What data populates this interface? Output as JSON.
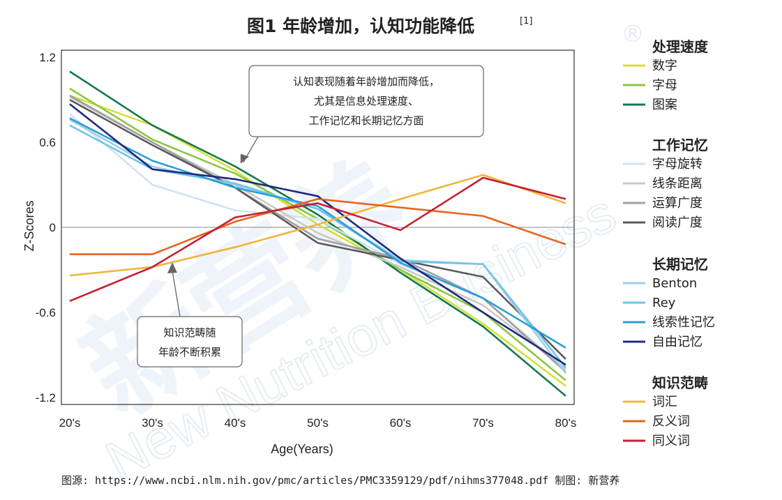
{
  "title": "图1  年龄增加，认知功能降低",
  "title_ref": "[1]",
  "watermark": {
    "cn": "新营养",
    "en": "New Nutrition Business",
    "reg": "®"
  },
  "chart_data": {
    "type": "line",
    "xlabel": "Age(Years)",
    "ylabel": "Z-Scores",
    "categories": [
      "20's",
      "30's",
      "40's",
      "50's",
      "60's",
      "70's",
      "80's"
    ],
    "ylim": [
      -1.25,
      1.25
    ],
    "yticks": [
      -1.2,
      -0.6,
      0,
      0.6,
      1.2
    ],
    "ytick_labels": [
      "-1.2",
      "-0.6",
      "0",
      "0.6",
      "1.2"
    ],
    "grid": false,
    "legend_position": "right",
    "legend_groups": [
      {
        "name": "处理速度",
        "series": [
          "数字",
          "字母",
          "图案"
        ]
      },
      {
        "name": "工作记忆",
        "series": [
          "字母旋转",
          "线条距离",
          "运算广度",
          "阅读广度"
        ]
      },
      {
        "name": "长期记忆",
        "series": [
          "Benton",
          "Rey",
          "线索性记忆",
          "自由记忆"
        ]
      },
      {
        "name": "知识范畴",
        "series": [
          "词汇",
          "反义词",
          "同义词"
        ]
      }
    ],
    "series": [
      {
        "name": "数字",
        "color": "#d4e03a",
        "x": [
          0,
          1,
          2,
          3,
          4,
          5,
          6
        ],
        "values": [
          0.93,
          0.72,
          0.4,
          0.02,
          -0.3,
          -0.68,
          -1.12
        ]
      },
      {
        "name": "字母",
        "color": "#8cc63f",
        "x": [
          0,
          1,
          2,
          3,
          4,
          5,
          6
        ],
        "values": [
          0.98,
          0.62,
          0.38,
          0.06,
          -0.3,
          -0.6,
          -1.08
        ]
      },
      {
        "name": "图案",
        "color": "#14794a",
        "x": [
          0,
          1,
          2,
          3,
          4,
          5,
          6
        ],
        "values": [
          1.1,
          0.72,
          0.43,
          0.09,
          -0.32,
          -0.7,
          -1.19
        ]
      },
      {
        "name": "字母旋转",
        "color": "#cfe3ee",
        "x": [
          0,
          1,
          2,
          3,
          4,
          5,
          6
        ],
        "values": [
          0.8,
          0.3,
          0.12,
          0.06,
          -0.26,
          -0.5,
          -1.0
        ]
      },
      {
        "name": "线条距离",
        "color": "#c8c8c8",
        "x": [
          0,
          1,
          2,
          3,
          4,
          5,
          6
        ],
        "values": [
          0.92,
          0.6,
          0.3,
          -0.04,
          -0.28,
          -0.55,
          -1.0
        ]
      },
      {
        "name": "运算广度",
        "color": "#a0a0a0",
        "x": [
          0,
          1,
          2,
          3,
          4,
          5,
          6
        ],
        "values": [
          0.93,
          0.6,
          0.28,
          -0.08,
          -0.22,
          -0.5,
          -1.02
        ]
      },
      {
        "name": "阅读广度",
        "color": "#5a5a5a",
        "x": [
          0,
          1,
          2,
          3,
          4,
          5,
          6
        ],
        "values": [
          0.9,
          0.58,
          0.28,
          -0.11,
          -0.23,
          -0.35,
          -0.93
        ]
      },
      {
        "name": "Benton",
        "color": "#9fcfe6",
        "x": [
          0,
          1,
          2,
          3,
          4,
          5,
          6
        ],
        "values": [
          0.76,
          0.43,
          0.3,
          0.13,
          -0.23,
          -0.26,
          -1.03
        ]
      },
      {
        "name": "Rey",
        "color": "#72c4e6",
        "x": [
          0,
          1,
          2,
          3,
          4,
          5,
          6
        ],
        "values": [
          0.72,
          0.41,
          0.31,
          0.13,
          -0.24,
          -0.26,
          -0.99
        ]
      },
      {
        "name": "线索性记忆",
        "color": "#2a9fd6",
        "x": [
          0,
          1,
          2,
          3,
          4,
          5,
          6
        ],
        "values": [
          0.77,
          0.47,
          0.28,
          0.15,
          -0.25,
          -0.5,
          -0.85
        ]
      },
      {
        "name": "自由记忆",
        "color": "#1f2a80",
        "x": [
          0,
          1,
          2,
          3,
          4,
          5,
          6
        ],
        "values": [
          0.87,
          0.41,
          0.34,
          0.22,
          -0.22,
          -0.6,
          -0.97
        ]
      },
      {
        "name": "词汇",
        "color": "#f2b53a",
        "x": [
          0,
          1,
          2,
          3,
          4,
          5,
          6
        ],
        "values": [
          -0.34,
          -0.28,
          -0.14,
          0.02,
          0.2,
          0.37,
          0.17
        ]
      },
      {
        "name": "反义词",
        "color": "#e8641f",
        "x": [
          0,
          1,
          2,
          3,
          4,
          5,
          6
        ],
        "values": [
          -0.19,
          -0.19,
          0.04,
          0.2,
          0.14,
          0.08,
          -0.12
        ]
      },
      {
        "name": "同义词",
        "color": "#c4202f",
        "x": [
          0,
          1,
          2,
          3,
          4,
          5,
          6
        ],
        "values": [
          -0.52,
          -0.28,
          0.07,
          0.17,
          -0.02,
          0.35,
          0.2
        ]
      }
    ],
    "annotations": [
      {
        "name": "top-note",
        "lines": [
          "认知表现随着年龄增加而降低，",
          "尤其是信息处理速度、",
          "工作记忆和长期记忆方面"
        ],
        "target_x": 2.1,
        "target_y": 0.43
      },
      {
        "name": "bottom-note",
        "lines": [
          "知识范畴随",
          "年龄不断积累"
        ],
        "target_x": 1.3,
        "target_y": -0.28
      }
    ]
  },
  "footer": "图源: https://www.ncbi.nlm.nih.gov/pmc/articles/PMC3359129/pdf/nihms377048.pdf 制图: 新营养"
}
